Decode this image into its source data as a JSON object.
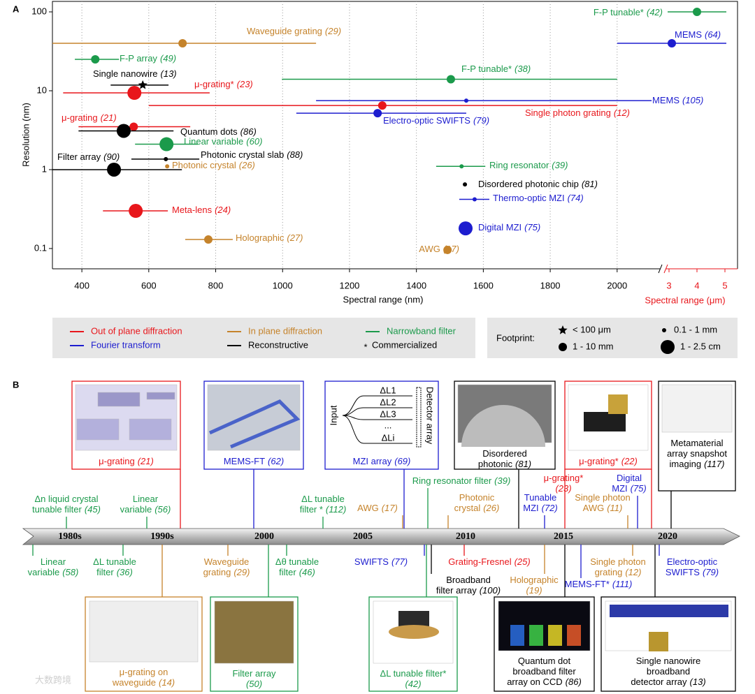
{
  "chart_data": {
    "type": "range-scatter",
    "panel": "A",
    "xlabel": "Spectral range (nm)",
    "x2label": "Spectral range (μm)",
    "ylabel": "Resolution (nm)",
    "xlim": [
      312,
      5450
    ],
    "xbreak": [
      2130,
      2875
    ],
    "x2color": "#e8161b",
    "xticks": [
      400,
      600,
      800,
      1000,
      1200,
      1400,
      1600,
      1800,
      2000,
      {
        "value": 3000,
        "label": "3"
      },
      {
        "value": 4000,
        "label": "4"
      },
      {
        "value": 5000,
        "label": "5"
      }
    ],
    "ylim": [
      0.0553,
      135.8
    ],
    "yticks": [
      0.1,
      1,
      10,
      100
    ],
    "ylog": true,
    "grid": true,
    "series": [
      {
        "name": "Out of plane diffraction",
        "color": "#e8161b",
        "points": [
          {
            "label": "μ-grating*",
            "ref": "(23)",
            "x": 557,
            "xmin": 344,
            "xmax": 782,
            "y": 9.4,
            "marker": "large"
          },
          {
            "label": "Single photon grating",
            "ref": "(12)",
            "x": 1298,
            "xmin": 600,
            "xmax": 2000,
            "y": 6.5,
            "marker": "medium"
          },
          {
            "label": "μ-grating",
            "ref": "(21)",
            "x": 555,
            "xmin": 390,
            "xmax": 724,
            "y": 3.5,
            "marker": "medium"
          },
          {
            "label": "Meta-lens",
            "ref": "(24)",
            "x": 561,
            "xmin": 463,
            "xmax": 657,
            "y": 0.3,
            "marker": "large"
          }
        ]
      },
      {
        "name": "In plane diffraction",
        "color": "#c5832b",
        "points": [
          {
            "label": "Waveguide grating",
            "ref": "(29)",
            "x": 701,
            "xmin": 312,
            "xmax": 1100,
            "y": 40,
            "marker": "medium"
          },
          {
            "label": "Photonic crystal",
            "ref": "(26)",
            "x": 655,
            "y": 1.1,
            "marker": "small"
          },
          {
            "label": "Holographic",
            "ref": "(27)",
            "x": 778,
            "xmin": 709,
            "xmax": 851,
            "y": 0.13,
            "marker": "medium"
          },
          {
            "label": "AWG",
            "ref": "(17)",
            "x": 1493,
            "y": 0.096,
            "marker": "medium"
          }
        ]
      },
      {
        "name": "Narrowband filter",
        "color": "#1b9a4b",
        "points": [
          {
            "label": "F-P tunable*",
            "ref": "(42)",
            "x": 4000,
            "xmin": 2950,
            "xmax": 5050,
            "y": 100,
            "marker": "medium"
          },
          {
            "label": "F-P array",
            "ref": "(49)",
            "x": 440,
            "xmin": 379,
            "xmax": 511,
            "y": 25,
            "marker": "medium"
          },
          {
            "label": "F-P tunable*",
            "ref": "(38)",
            "x": 1503,
            "xmin": 998,
            "xmax": 2000,
            "y": 14,
            "marker": "medium"
          },
          {
            "label": "Linear variable",
            "ref": "(60)",
            "x": 653,
            "xmin": 559,
            "xmax": 747,
            "y": 2.1,
            "marker": "large"
          },
          {
            "label": "Ring resonator",
            "ref": "(39)",
            "x": 1535,
            "xmin": 1459,
            "xmax": 1606,
            "y": 1.1,
            "marker": "small"
          }
        ]
      },
      {
        "name": "Fourier transform",
        "color": "#1d1dcf",
        "points": [
          {
            "label": "MEMS",
            "ref": "(64)",
            "x": 3100,
            "xmin": 2000,
            "xmax": 5050,
            "y": 40,
            "marker": "medium"
          },
          {
            "label": "MEMS",
            "ref": "(105)",
            "x": 1549,
            "xmin": 1100,
            "xmax": 2103,
            "y": 7.5,
            "marker": "small"
          },
          {
            "label": "Electro-optic SWIFTS",
            "ref": "(79)",
            "x": 1284,
            "xmin": 1041,
            "xmax": 1549,
            "y": 5.2,
            "marker": "medium"
          },
          {
            "label": "Thermo-optic MZI",
            "ref": "(74)",
            "x": 1574,
            "xmin": 1528,
            "xmax": 1618,
            "y": 0.42,
            "marker": "small"
          },
          {
            "label": "Digital MZI",
            "ref": "(75)",
            "x": 1547,
            "y": 0.18,
            "marker": "large"
          }
        ]
      },
      {
        "name": "Reconstructive",
        "color": "#000000",
        "points": [
          {
            "label": "Single nanowire",
            "ref": "(13)",
            "x": 582,
            "xmin": 486,
            "xmax": 659,
            "y": 11.8,
            "marker": "star"
          },
          {
            "label": "Quantum dots",
            "ref": "(86)",
            "x": 525,
            "xmin": 390,
            "xmax": 674,
            "y": 3.1,
            "marker": "large"
          },
          {
            "label": "Photonic crystal slab",
            "ref": "(88)",
            "x": 651,
            "xmin": 548,
            "xmax": 751,
            "y": 1.36,
            "marker": "small"
          },
          {
            "label": "Filter array",
            "ref": "(90)",
            "x": 496,
            "xmin": 312,
            "xmax": 699,
            "y": 1.0,
            "marker": "large"
          },
          {
            "label": "Disordered photonic chip",
            "ref": "(81)",
            "x": 1545,
            "y": 0.65,
            "marker": "small"
          }
        ]
      }
    ],
    "commercialized": {
      "symbol": "*",
      "label": "Commercialized"
    },
    "footprint": {
      "title": "Footprint:",
      "entries": [
        {
          "marker": "star",
          "label": "< 100 μm"
        },
        {
          "marker": "small",
          "label": "0.1 - 1 mm"
        },
        {
          "marker": "medium",
          "label": "1 - 10 mm"
        },
        {
          "marker": "large",
          "label": "1 - 2.5 cm"
        }
      ]
    }
  },
  "panel_b": {
    "label": "B",
    "timeline": [
      "1980s",
      "1990s",
      "2000",
      "2005",
      "2010",
      "2015",
      "2020"
    ],
    "top_boxes": [
      {
        "lines": [
          "μ-grating"
        ],
        "ref": "(21)",
        "color": "#e8161b"
      },
      {
        "lines": [
          "MEMS-FT"
        ],
        "ref": "(62)",
        "color": "#1d1dcf"
      },
      {
        "lines": [
          "MZI array"
        ],
        "ref": "(69)",
        "color": "#1d1dcf",
        "image_text": [
          "Input",
          "ΔL1",
          "ΔL2",
          "ΔL3",
          "...",
          "ΔLi",
          "Detector array"
        ]
      },
      {
        "lines": [
          "Disordered",
          "photonic"
        ],
        "ref": "(81)",
        "color": "#000000"
      },
      {
        "lines": [
          "μ-grating*"
        ],
        "ref": "(22)",
        "color": "#e8161b"
      },
      {
        "lines": [
          "Metamaterial",
          "array snapshot",
          "imaging"
        ],
        "ref": "(117)",
        "color": "#000000"
      }
    ],
    "above": [
      {
        "lines": [
          "Δn liquid crystal",
          "tunable filter"
        ],
        "ref": "(45)",
        "color": "#1b9a4b"
      },
      {
        "lines": [
          "Linear",
          "variable"
        ],
        "ref": "(56)",
        "color": "#1b9a4b"
      },
      {
        "lines": [
          "ΔL tunable",
          "filter *"
        ],
        "ref": "(112)",
        "color": "#1b9a4b"
      },
      {
        "lines": [
          "AWG"
        ],
        "ref": "(17)",
        "color": "#c5832b"
      },
      {
        "lines": [
          "Ring resonator filter"
        ],
        "ref": "(39)",
        "color": "#1b9a4b"
      },
      {
        "lines": [
          "Photonic",
          "crystal"
        ],
        "ref": "(26)",
        "color": "#c5832b"
      },
      {
        "lines": [
          "Tunable",
          "MZI"
        ],
        "ref": "(72)",
        "color": "#1d1dcf"
      },
      {
        "lines": [
          "μ-grating*"
        ],
        "ref": "(23)",
        "color": "#e8161b"
      },
      {
        "lines": [
          "Single photon",
          "AWG"
        ],
        "ref": "(11)",
        "color": "#c5832b"
      },
      {
        "lines": [
          "Digital",
          "MZI"
        ],
        "ref": "(75)",
        "color": "#1d1dcf"
      }
    ],
    "below": [
      {
        "lines": [
          "Linear",
          "variable"
        ],
        "ref": "(58)",
        "color": "#1b9a4b"
      },
      {
        "lines": [
          "ΔL tunable",
          "filter"
        ],
        "ref": "(36)",
        "color": "#1b9a4b"
      },
      {
        "lines": [
          "Waveguide",
          "grating"
        ],
        "ref": "(29)",
        "color": "#c5832b"
      },
      {
        "lines": [
          "Δθ tunable",
          "filter"
        ],
        "ref": "(46)",
        "color": "#1b9a4b"
      },
      {
        "lines": [
          "SWIFTS"
        ],
        "ref": "(77)",
        "color": "#1d1dcf"
      },
      {
        "lines": [
          "Grating-Fresnel"
        ],
        "ref": "(25)",
        "color": "#e8161b"
      },
      {
        "lines": [
          "Broadband",
          "filter array"
        ],
        "ref": "(100)",
        "color": "#000000"
      },
      {
        "lines": [
          "Holographic"
        ],
        "ref": "(19)",
        "color": "#c5832b"
      },
      {
        "lines": [
          "Single photon",
          "grating"
        ],
        "ref": "(12)",
        "color": "#c5832b"
      },
      {
        "lines": [
          "MEMS-FT*"
        ],
        "ref": "(111)",
        "color": "#1d1dcf"
      },
      {
        "lines": [
          "Electro-optic",
          "SWIFTS"
        ],
        "ref": "(79)",
        "color": "#1d1dcf"
      }
    ],
    "bottom_boxes": [
      {
        "lines": [
          "μ-grating on",
          "waveguide"
        ],
        "ref": "(14)",
        "color": "#c5832b"
      },
      {
        "lines": [
          "Filter array"
        ],
        "ref": "(50)",
        "color": "#1b9a4b"
      },
      {
        "lines": [
          "ΔL tunable filter*"
        ],
        "ref": "(42)",
        "color": "#1b9a4b"
      },
      {
        "lines": [
          "Quantum dot",
          "broadband filter",
          "array on CCD"
        ],
        "ref": "(86)",
        "color": "#000000"
      },
      {
        "lines": [
          "Single nanowire",
          "broadband",
          "detector array"
        ],
        "ref": "(13)",
        "color": "#000000"
      }
    ],
    "watermark": "大数跨境"
  }
}
